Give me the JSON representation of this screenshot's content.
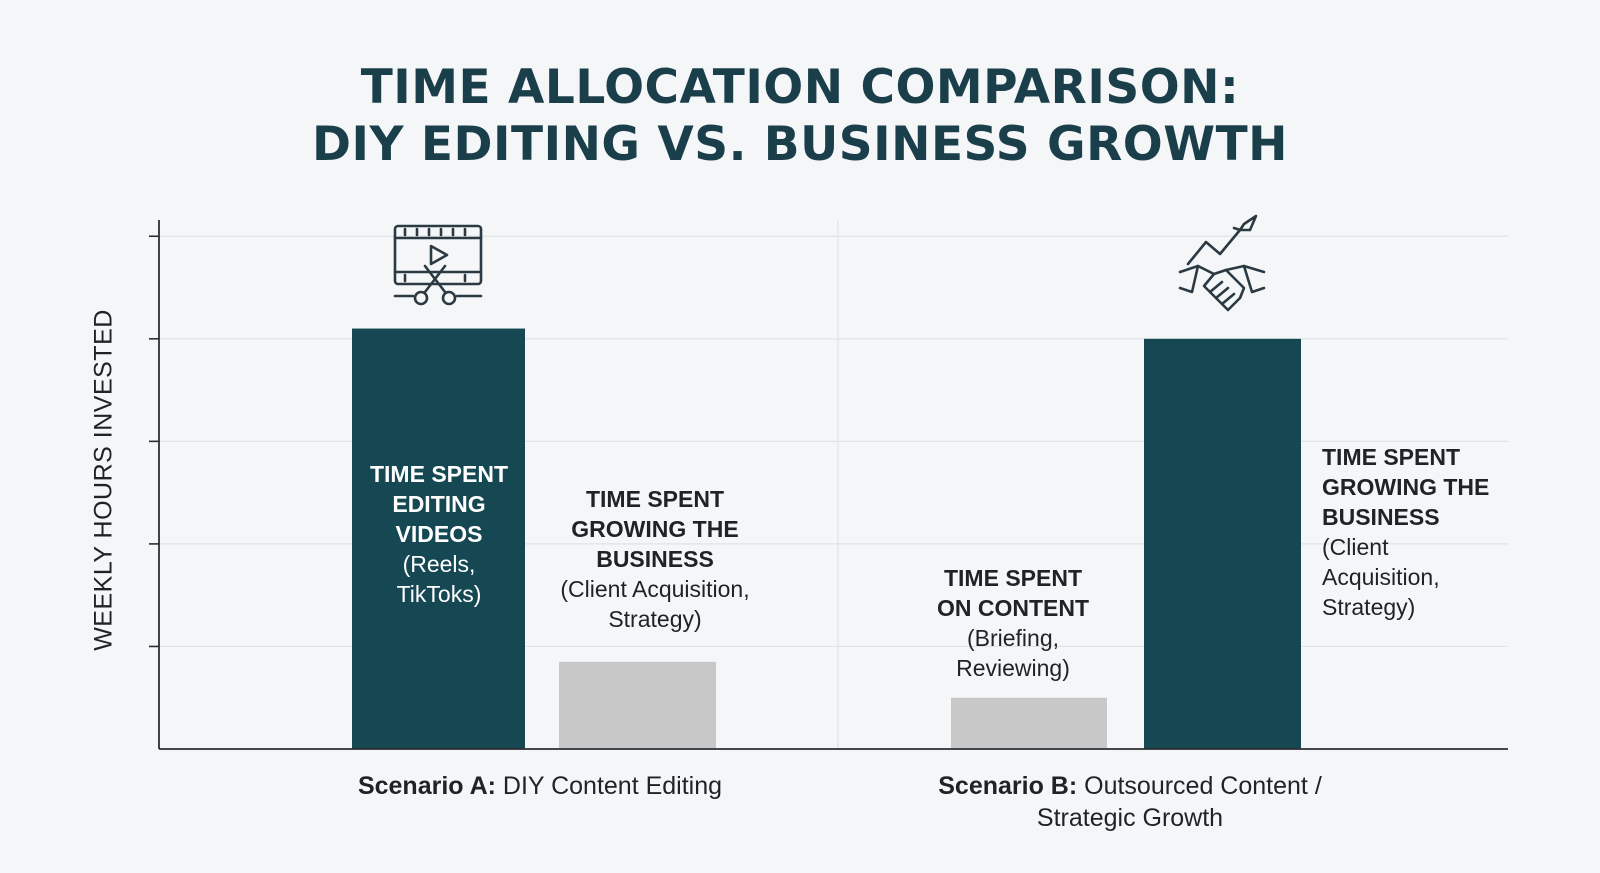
{
  "title": {
    "line1": "TIME ALLOCATION COMPARISON:",
    "line2": "DIY EDITING VS. BUSINESS GROWTH"
  },
  "chart_data": {
    "type": "bar",
    "ylabel": "WEEKLY HOURS INVESTED",
    "ylim": [
      0,
      5.1
    ],
    "grid": true,
    "tick_labels_shown": false,
    "groups": [
      {
        "scenario_bold": "Scenario A:",
        "scenario_text": "DIY Content Editing",
        "icon": "video-editing-scissors-icon",
        "bars": [
          {
            "value": 4.1,
            "color": "#154852",
            "label_bold": [
              "TIME SPENT",
              "EDITING",
              "VIDEOS"
            ],
            "label_light": [
              "(Reels,",
              "TikToks)"
            ]
          },
          {
            "value": 0.85,
            "color": "#c8c8c8",
            "label_bold": [
              "TIME SPENT",
              "GROWING THE",
              "BUSINESS"
            ],
            "label_light": [
              "(Client Acquisition,",
              "Strategy)"
            ]
          }
        ]
      },
      {
        "scenario_bold": "Scenario B:",
        "scenario_text_1": "Outsourced Content /",
        "scenario_text_2": "Strategic Growth",
        "icon": "handshake-growth-arrow-icon",
        "bars": [
          {
            "value": 0.5,
            "color": "#c8c8c8",
            "label_bold": [
              "TIME SPENT",
              "ON CONTENT"
            ],
            "label_light": [
              "(Briefing,",
              "Reviewing)"
            ]
          },
          {
            "value": 4.0,
            "color": "#154852",
            "label_bold": [
              "TIME SPENT",
              "GROWING THE",
              "BUSINESS"
            ],
            "label_light": [
              "(Client",
              "Acquisition,",
              "Strategy)"
            ]
          }
        ]
      }
    ]
  }
}
